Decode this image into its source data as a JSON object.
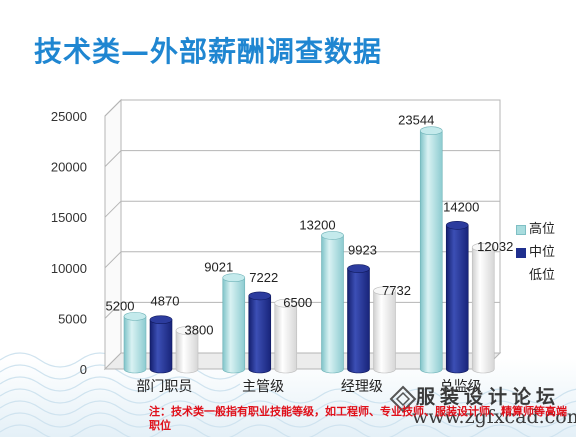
{
  "title": "技术类—外部薪酬调查数据",
  "footnote": "注：技术类一般指有职业技能等级，如工程师、专业技师、服装设计师、精算师等高端职位",
  "watermark": {
    "text": "服装设计论坛",
    "url": "www.zgfxcad.com"
  },
  "colors": {
    "title": "#1f86d1",
    "footnote": "#e0101a",
    "high": "#a8dcde",
    "mid": "#1f2f8e",
    "low": "#f2f2f2"
  },
  "chart_data": {
    "type": "bar",
    "categories": [
      "部门职员",
      "主管级",
      "经理级",
      "总监级"
    ],
    "series": [
      {
        "name": "高位",
        "values": [
          5200,
          9021,
          13200,
          23544
        ]
      },
      {
        "name": "中位",
        "values": [
          4870,
          7222,
          9923,
          14200
        ]
      },
      {
        "name": "低位",
        "values": [
          3800,
          6500,
          7732,
          12032
        ]
      }
    ],
    "ylim": [
      0,
      25000
    ],
    "yticks": [
      0,
      5000,
      10000,
      15000,
      20000,
      25000
    ],
    "grid": true,
    "legend": "right",
    "style": "3d-cylinder"
  }
}
